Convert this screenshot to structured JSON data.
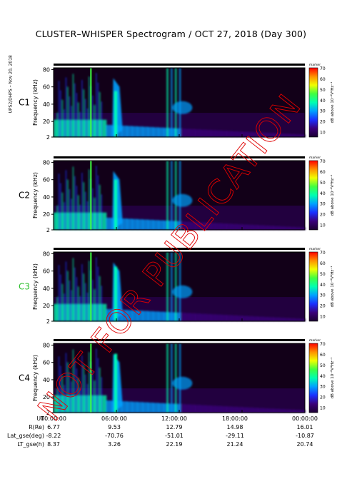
{
  "title": "CLUSTER–WHISPER Spectrogram / OCT 27, 2018 (Day 300)",
  "side_text": "UPS2/DHPS – Nov 20, 2018",
  "stamp_text": "NOT FOR PUBLICATION",
  "colors": {
    "background": "#120018",
    "scale": [
      "#1b0030",
      "#3a007a",
      "#1a30ff",
      "#00a0ff",
      "#00ffb0",
      "#40ff40",
      "#f0ff00",
      "#ff9000",
      "#ff0000"
    ],
    "stamp": "#e00000",
    "spacecraft_c3": "#30c030"
  },
  "chart_data": [
    {
      "type": "heatmap",
      "panel": "C1",
      "ylabel": "Frequency (kHz)",
      "yticks": [
        "2",
        "20",
        "40",
        "60",
        "80"
      ],
      "ylim": [
        2,
        82
      ],
      "colorbar_label": "dB above 10⁻⁸V²Hz⁻¹",
      "colorbar_ticks": [
        "10",
        "20",
        "30",
        "40",
        "50",
        "60",
        "70"
      ],
      "clim": [
        5,
        70
      ],
      "corner_label": "marker"
    },
    {
      "type": "heatmap",
      "panel": "C2",
      "ylabel": "Frequency (kHz)",
      "yticks": [
        "2",
        "20",
        "40",
        "60",
        "80"
      ],
      "ylim": [
        2,
        82
      ],
      "colorbar_label": "dB above 10⁻⁸V²Hz⁻¹",
      "colorbar_ticks": [
        "10",
        "20",
        "30",
        "40",
        "50",
        "60",
        "70"
      ],
      "clim": [
        5,
        70
      ],
      "corner_label": "marker"
    },
    {
      "type": "heatmap",
      "panel": "C3",
      "ylabel": "Frequency (kHz)",
      "yticks": [
        "2",
        "20",
        "40",
        "60",
        "80"
      ],
      "ylim": [
        2,
        82
      ],
      "colorbar_label": "dB above 10⁻⁸V²Hz⁻¹",
      "colorbar_ticks": [
        "10",
        "20",
        "30",
        "40",
        "50",
        "60",
        "70"
      ],
      "clim": [
        5,
        70
      ],
      "corner_label": "marker"
    },
    {
      "type": "heatmap",
      "panel": "C4",
      "ylabel": "Frequency (kHz)",
      "yticks": [
        "2",
        "20",
        "40",
        "60",
        "80"
      ],
      "ylim": [
        2,
        82
      ],
      "colorbar_label": "dB above 10⁻⁸V²Hz⁻¹",
      "colorbar_ticks": [
        "10",
        "20",
        "30",
        "40",
        "50",
        "60",
        "70"
      ],
      "clim": [
        5,
        70
      ],
      "corner_label": "marker"
    }
  ],
  "x_axis": {
    "ticks": [
      "00:00:00",
      "06:00:00",
      "12:00:00",
      "18:00:00",
      "00:00:00"
    ],
    "xlim_hours": [
      0,
      24
    ]
  },
  "ephemeris": {
    "labels": [
      "UT",
      "R(Re)",
      "Lat_gse(deg)",
      "LT_gse(h)"
    ],
    "rows": [
      [
        "00:00:00",
        "06:00:00",
        "12:00:00",
        "18:00:00",
        "00:00:00"
      ],
      [
        "6.77",
        "9.53",
        "12.79",
        "14.98",
        "16.01"
      ],
      [
        "-8.22",
        "-70.76",
        "-51.01",
        "-29.11",
        "-10.87"
      ],
      [
        "8.37",
        "3.26",
        "22.19",
        "21.24",
        "20.74"
      ]
    ]
  }
}
